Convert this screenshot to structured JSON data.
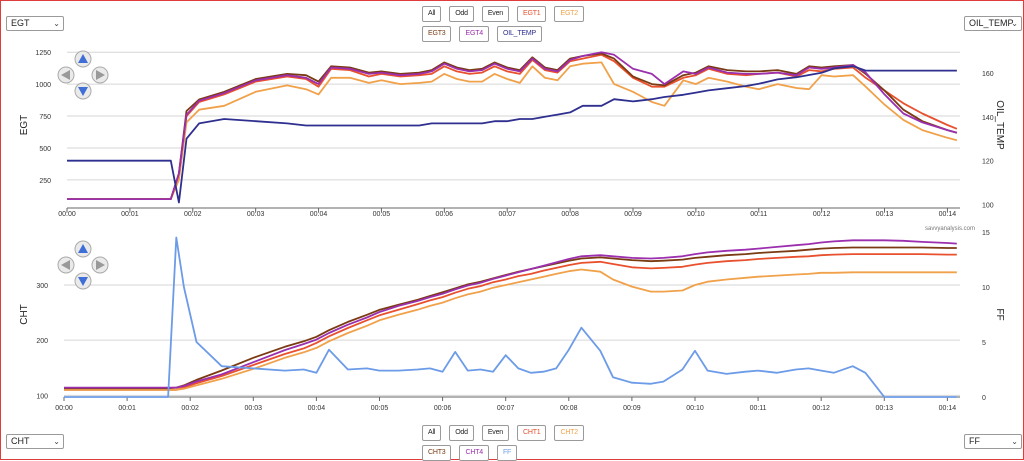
{
  "top_panel": {
    "left_select": "EGT",
    "right_select": "OIL_TEMP",
    "buttons": [
      {
        "label": "All",
        "color": "#222222"
      },
      {
        "label": "Odd",
        "color": "#222222"
      },
      {
        "label": "Even",
        "color": "#222222"
      },
      {
        "label": "EGT1",
        "color": "#e8502e"
      },
      {
        "label": "EGT2",
        "color": "#f0a14a"
      },
      {
        "label": "EGT3",
        "color": "#7a3a12"
      },
      {
        "label": "EGT4",
        "color": "#9b2fae"
      },
      {
        "label": "OIL_TEMP",
        "color": "#2e2f8f"
      }
    ]
  },
  "bottom_panel": {
    "left_select": "CHT",
    "right_select": "FF",
    "buttons": [
      {
        "label": "All",
        "color": "#222222"
      },
      {
        "label": "Odd",
        "color": "#222222"
      },
      {
        "label": "Even",
        "color": "#222222"
      },
      {
        "label": "CHT1",
        "color": "#e8502e"
      },
      {
        "label": "CHT2",
        "color": "#f0a14a"
      },
      {
        "label": "CHT3",
        "color": "#7a3a12"
      },
      {
        "label": "CHT4",
        "color": "#9b2fae"
      },
      {
        "label": "FF",
        "color": "#6c9be8"
      }
    ]
  },
  "watermark": "savvyanalysis.com",
  "chart_data": [
    {
      "type": "line",
      "ylabel": "EGT",
      "y2label": "OIL_TEMP",
      "x_ticks": [
        "00:00",
        "00:01",
        "00:02",
        "00:03",
        "00:04",
        "00:05",
        "00:06",
        "00:07",
        "00:08",
        "00:09",
        "00:10",
        "00:11",
        "00:12",
        "00:13",
        "00:14"
      ],
      "xlim": [
        0,
        14.2
      ],
      "ylim": [
        30,
        1330
      ],
      "yticks": [
        250,
        500,
        750,
        1000,
        1250
      ],
      "y2lim": [
        98.5,
        174
      ],
      "y2ticks": [
        100,
        120,
        140,
        160
      ],
      "grid": true,
      "x": [
        0,
        1,
        1.65,
        1.78,
        1.9,
        2.1,
        2.5,
        3,
        3.5,
        3.8,
        4,
        4.2,
        4.5,
        4.8,
        5,
        5.3,
        5.6,
        5.8,
        6,
        6.2,
        6.4,
        6.6,
        6.8,
        7,
        7.2,
        7.4,
        7.6,
        7.8,
        8,
        8.2,
        8.5,
        8.7,
        9,
        9.3,
        9.5,
        9.8,
        10,
        10.2,
        10.5,
        10.8,
        11,
        11.3,
        11.6,
        11.8,
        12,
        12.2,
        12.5,
        12.7,
        13,
        13.3,
        13.6,
        14,
        14.15
      ],
      "series": [
        {
          "name": "EGT1",
          "color": "#e8502e",
          "axis": "left",
          "values": [
            100,
            100,
            100,
            300,
            750,
            860,
            920,
            1020,
            1060,
            1040,
            980,
            1120,
            1110,
            1060,
            1080,
            1060,
            1070,
            1080,
            1140,
            1100,
            1080,
            1090,
            1140,
            1100,
            1080,
            1190,
            1110,
            1090,
            1180,
            1200,
            1230,
            1180,
            1050,
            980,
            980,
            1050,
            1070,
            1120,
            1080,
            1070,
            1080,
            1090,
            1060,
            1110,
            1100,
            1120,
            1130,
            1050,
            950,
            850,
            770,
            680,
            650
          ]
        },
        {
          "name": "EGT2",
          "color": "#f0a14a",
          "axis": "left",
          "values": [
            100,
            100,
            100,
            250,
            700,
            800,
            830,
            940,
            990,
            960,
            920,
            1050,
            1050,
            1010,
            1030,
            1000,
            1010,
            1020,
            1080,
            1040,
            1020,
            1020,
            1080,
            1040,
            1010,
            1140,
            1050,
            1030,
            1140,
            1160,
            1170,
            1000,
            940,
            860,
            830,
            1030,
            1000,
            1050,
            1020,
            980,
            960,
            1000,
            970,
            960,
            1070,
            1060,
            1070,
            980,
            840,
            720,
            640,
            580,
            560
          ]
        },
        {
          "name": "EGT3",
          "color": "#7a3a12",
          "axis": "left",
          "values": [
            100,
            100,
            100,
            300,
            790,
            880,
            940,
            1040,
            1080,
            1070,
            1020,
            1140,
            1130,
            1090,
            1100,
            1080,
            1090,
            1110,
            1170,
            1130,
            1110,
            1120,
            1170,
            1130,
            1110,
            1210,
            1130,
            1110,
            1200,
            1220,
            1240,
            1200,
            1060,
            1000,
            990,
            1070,
            1090,
            1140,
            1110,
            1100,
            1100,
            1110,
            1080,
            1140,
            1130,
            1140,
            1150,
            1080,
            950,
            800,
            710,
            640,
            620
          ]
        },
        {
          "name": "EGT4",
          "color": "#9b2fae",
          "axis": "left",
          "values": [
            100,
            100,
            100,
            300,
            760,
            870,
            930,
            1030,
            1070,
            1050,
            1000,
            1130,
            1120,
            1080,
            1090,
            1070,
            1080,
            1100,
            1160,
            1120,
            1100,
            1110,
            1160,
            1120,
            1100,
            1200,
            1120,
            1100,
            1190,
            1220,
            1250,
            1230,
            1120,
            1080,
            1000,
            1100,
            1080,
            1130,
            1090,
            1080,
            1080,
            1090,
            1070,
            1130,
            1120,
            1130,
            1150,
            1090,
            920,
            770,
            700,
            640,
            620
          ]
        },
        {
          "name": "OIL_TEMP",
          "color": "#2e2f8f",
          "axis": "right",
          "values": [
            120,
            120,
            120,
            101,
            130,
            137,
            139,
            138,
            137,
            136,
            136,
            136,
            136,
            136,
            136,
            136,
            136,
            137,
            137,
            137,
            137,
            137,
            138,
            138,
            139,
            139,
            140,
            141,
            142,
            145,
            145,
            148,
            147,
            148,
            149,
            150,
            151,
            152,
            153,
            154,
            155,
            157,
            158,
            159,
            160,
            162,
            163,
            161,
            161,
            161,
            161,
            161,
            161
          ]
        }
      ]
    },
    {
      "type": "line",
      "ylabel": "CHT",
      "y2label": "FF",
      "x_ticks": [
        "00:00",
        "00:01",
        "00:02",
        "00:03",
        "00:04",
        "00:05",
        "00:06",
        "00:07",
        "00:08",
        "00:09",
        "00:10",
        "00:11",
        "00:12",
        "00:13",
        "00:14"
      ],
      "xlim": [
        0,
        14.2
      ],
      "ylim": [
        97,
        396
      ],
      "yticks": [
        100,
        200,
        300
      ],
      "y2lim": [
        0,
        15
      ],
      "y2ticks": [
        0,
        5,
        10,
        15
      ],
      "grid": true,
      "x": [
        0,
        1,
        1.65,
        1.78,
        1.9,
        2.1,
        2.5,
        3,
        3.5,
        3.8,
        4,
        4.2,
        4.5,
        4.8,
        5,
        5.3,
        5.6,
        5.8,
        6,
        6.2,
        6.4,
        6.6,
        6.8,
        7,
        7.2,
        7.4,
        7.6,
        7.8,
        8,
        8.2,
        8.5,
        8.7,
        9,
        9.3,
        9.5,
        9.8,
        10,
        10.2,
        10.5,
        10.8,
        11,
        11.3,
        11.6,
        11.8,
        12,
        12.2,
        12.5,
        12.7,
        13,
        13.3,
        13.6,
        14,
        14.15
      ],
      "series": [
        {
          "name": "CHT1",
          "color": "#e8502e",
          "axis": "left",
          "values": [
            110,
            110,
            110,
            110,
            114,
            122,
            135,
            155,
            175,
            185,
            195,
            207,
            222,
            236,
            245,
            255,
            265,
            272,
            278,
            286,
            293,
            298,
            305,
            310,
            316,
            320,
            326,
            331,
            336,
            340,
            342,
            338,
            332,
            330,
            331,
            333,
            337,
            340,
            343,
            345,
            347,
            349,
            351,
            352,
            354,
            355,
            356,
            356,
            356,
            356,
            356,
            355,
            355
          ]
        },
        {
          "name": "CHT2",
          "color": "#f0a14a",
          "axis": "left",
          "values": [
            110,
            110,
            110,
            110,
            112,
            118,
            130,
            148,
            168,
            178,
            186,
            198,
            213,
            226,
            236,
            246,
            255,
            262,
            268,
            276,
            283,
            288,
            295,
            300,
            305,
            310,
            315,
            320,
            325,
            328,
            324,
            310,
            297,
            288,
            288,
            290,
            300,
            306,
            310,
            313,
            315,
            317,
            319,
            320,
            322,
            322,
            323,
            323,
            323,
            323,
            323,
            323,
            323
          ]
        },
        {
          "name": "CHT3",
          "color": "#7a3a12",
          "axis": "left",
          "values": [
            113,
            113,
            113,
            114,
            118,
            128,
            145,
            168,
            188,
            198,
            206,
            218,
            233,
            246,
            255,
            264,
            273,
            280,
            287,
            294,
            301,
            306,
            312,
            318,
            324,
            329,
            334,
            339,
            344,
            348,
            350,
            348,
            345,
            343,
            344,
            346,
            349,
            351,
            354,
            356,
            358,
            360,
            362,
            364,
            366,
            367,
            368,
            368,
            368,
            368,
            368,
            367,
            367
          ]
        },
        {
          "name": "CHT4",
          "color": "#9b2fae",
          "axis": "left",
          "values": [
            114,
            114,
            114,
            114,
            117,
            125,
            138,
            160,
            182,
            193,
            201,
            213,
            228,
            241,
            251,
            262,
            271,
            278,
            284,
            292,
            299,
            304,
            311,
            317,
            323,
            329,
            335,
            341,
            347,
            352,
            354,
            352,
            349,
            348,
            349,
            352,
            356,
            359,
            362,
            364,
            366,
            369,
            372,
            374,
            377,
            379,
            381,
            381,
            381,
            380,
            378,
            376,
            375
          ]
        },
        {
          "name": "FF",
          "color": "#6c9be8",
          "axis": "right",
          "values": [
            0,
            0,
            0,
            14.5,
            10,
            5,
            2.8,
            2.6,
            2.4,
            2.5,
            2.2,
            4.3,
            2.5,
            2.6,
            2.4,
            2.4,
            2.5,
            2.6,
            2.3,
            4.1,
            2.4,
            2.5,
            2.3,
            3.8,
            2.6,
            2.2,
            2.3,
            2.6,
            4.3,
            6.3,
            4.2,
            1.8,
            1.3,
            1.2,
            1.4,
            2.5,
            4.2,
            2.4,
            2.1,
            2.3,
            2.4,
            2.2,
            2.5,
            2.6,
            2.4,
            2.2,
            2.8,
            2.2,
            0,
            0,
            0,
            0,
            0
          ]
        }
      ]
    }
  ]
}
